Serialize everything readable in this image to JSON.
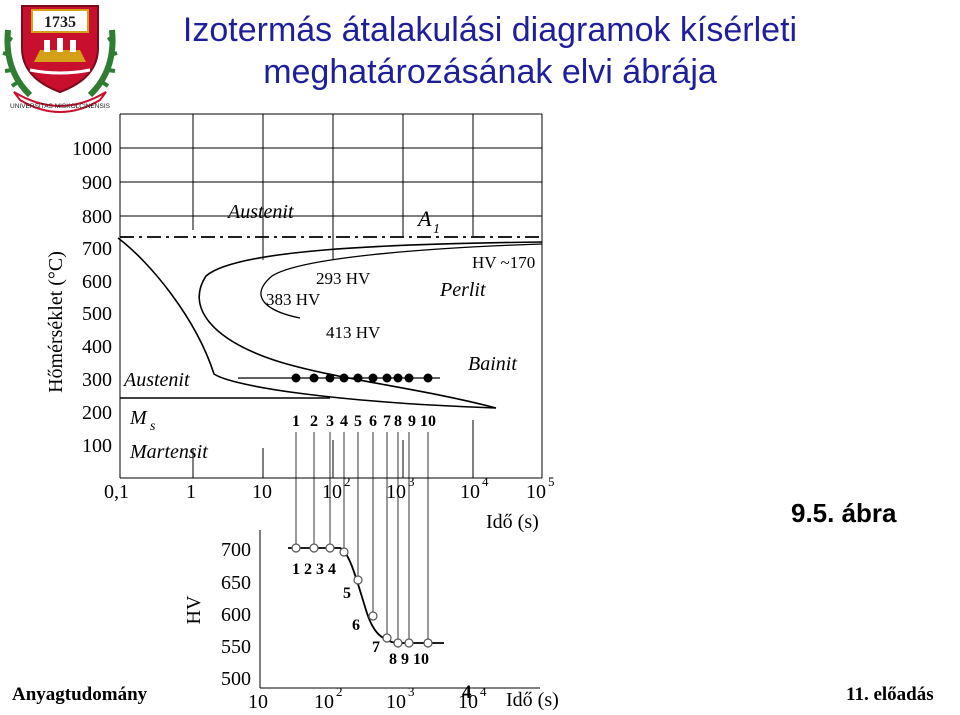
{
  "header": {
    "title_line1": "Izotermás átalakulási diagramok kísérleti",
    "title_line2": "meghatározásának elvi ábrája",
    "logo": {
      "year": "1735",
      "ring_text": "UNIVERSITAS MISKOLCINENSIS",
      "colors": {
        "shield": "#c8102e",
        "gold": "#d4a017",
        "laurel": "#2e7d32"
      }
    }
  },
  "ttt_diagram": {
    "y_axis_label": "Hőmérséklet (°C)",
    "y_ticks": [
      "1000",
      "900",
      "800",
      "700",
      "600",
      "500",
      "400",
      "300",
      "200",
      "100"
    ],
    "x_ticks": [
      "0,1",
      "1",
      "10",
      "10",
      "10",
      "10",
      "10"
    ],
    "x_tick_exponents": [
      "",
      "",
      "",
      "2",
      "3",
      "4",
      "5"
    ],
    "x_axis_label": "Idő (s)",
    "labels": {
      "austenit_top": "Austenit",
      "a1": "A",
      "a1_sub": "1",
      "hv_170": "HV ~170",
      "perlit": "Perlit",
      "hv_293": "293 HV",
      "hv_383": "383 HV",
      "hv_413": "413 HV",
      "bainit": "Bainit",
      "austenit_left": "Austenit",
      "ms": "M",
      "ms_sub": "s",
      "martensit": "Martensit"
    },
    "sample_numbers": [
      "1",
      "2",
      "3",
      "4",
      "5",
      "6",
      "7",
      "8",
      "9",
      "10"
    ]
  },
  "hv_chart": {
    "y_axis_label": "HV",
    "y_ticks": [
      "700",
      "650",
      "600",
      "550",
      "500"
    ],
    "x_ticks": [
      "10",
      "10",
      "10",
      "10"
    ],
    "x_tick_exponents": [
      "",
      "2",
      "3",
      "4"
    ],
    "x_axis_label": "Idő (s)",
    "point_labels": [
      "1 2 3 4",
      "5",
      "6",
      "7",
      "8 9 10"
    ]
  },
  "figure_label": "9.5. ábra",
  "footer": {
    "left": "Anyagtudomány",
    "page": "4",
    "right": "11. előadás"
  }
}
